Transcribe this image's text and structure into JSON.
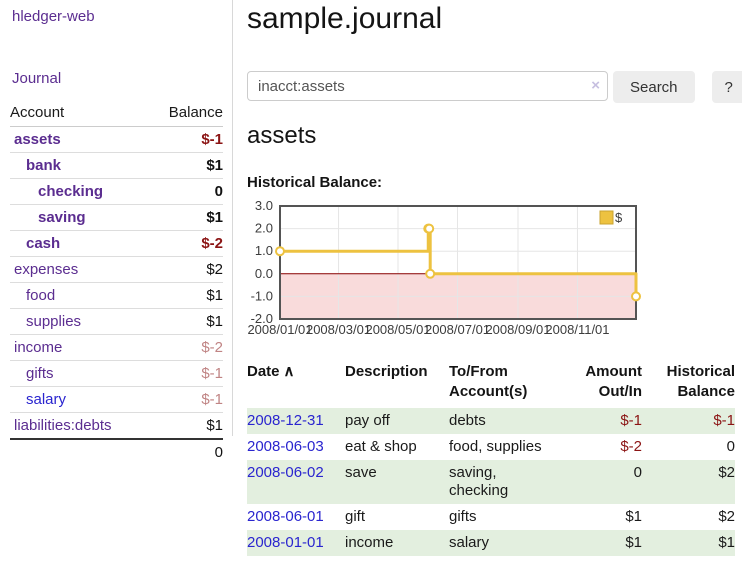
{
  "sidebar": {
    "app_title": "hledger-web",
    "nav": {
      "journal_label": "Journal"
    },
    "accounts_table": {
      "account_header": "Account",
      "balance_header": "Balance",
      "rows": [
        {
          "name": "assets",
          "balance": "$-1",
          "depth": 1,
          "bold": true,
          "blue": false,
          "balance_class": "neg-strong"
        },
        {
          "name": "bank",
          "balance": "$1",
          "depth": 2,
          "bold": true,
          "blue": false,
          "balance_class": "pos"
        },
        {
          "name": "checking",
          "balance": "0",
          "depth": 3,
          "bold": true,
          "blue": false,
          "balance_class": "pos"
        },
        {
          "name": "saving",
          "balance": "$1",
          "depth": 3,
          "bold": true,
          "blue": false,
          "balance_class": "pos"
        },
        {
          "name": "cash",
          "balance": "$-2",
          "depth": 2,
          "bold": true,
          "blue": false,
          "balance_class": "neg-strong"
        },
        {
          "name": "expenses",
          "balance": "$2",
          "depth": 1,
          "bold": false,
          "blue": false,
          "balance_class": "pos"
        },
        {
          "name": "food",
          "balance": "$1",
          "depth": 2,
          "bold": false,
          "blue": false,
          "balance_class": "pos"
        },
        {
          "name": "supplies",
          "balance": "$1",
          "depth": 2,
          "bold": false,
          "blue": false,
          "balance_class": "pos"
        },
        {
          "name": "income",
          "balance": "$-2",
          "depth": 1,
          "bold": false,
          "blue": false,
          "balance_class": "neg-soft"
        },
        {
          "name": "gifts",
          "balance": "$-1",
          "depth": 2,
          "bold": false,
          "blue": false,
          "balance_class": "neg-soft"
        },
        {
          "name": "salary",
          "balance": "$-1",
          "depth": 2,
          "bold": false,
          "blue": true,
          "balance_class": "neg-soft"
        },
        {
          "name": "liabilities:debts",
          "balance": "$1",
          "depth": 1,
          "bold": false,
          "blue": false,
          "balance_class": "pos"
        }
      ],
      "total": "0"
    }
  },
  "main": {
    "title": "sample.journal",
    "search": {
      "value": "inacct:assets",
      "clear_icon": "×",
      "button_label": "Search",
      "help_label": "?"
    },
    "account_heading": "assets",
    "chart_label": "Historical Balance:"
  },
  "chart_data": {
    "type": "line",
    "step": true,
    "title": "Historical Balance:",
    "series": [
      {
        "name": "$",
        "color": "#edc240",
        "points": [
          [
            "2008-01-01",
            1
          ],
          [
            "2008-06-01",
            2
          ],
          [
            "2008-06-02",
            2
          ],
          [
            "2008-06-03",
            0
          ],
          [
            "2008-12-31",
            -1
          ]
        ]
      }
    ],
    "x_ticks": [
      "2008/01/01",
      "2008/03/01",
      "2008/05/01",
      "2008/07/01",
      "2008/09/01",
      "2008/11/01"
    ],
    "y_ticks": [
      3.0,
      2.0,
      1.0,
      0.0,
      -1.0,
      -2.0
    ],
    "xlim": [
      "2008-01-01",
      "2008-12-31"
    ],
    "ylim": [
      -2,
      3
    ],
    "grid": true,
    "legend_position": "top-right",
    "legend": [
      "$"
    ],
    "negative_region_fill": "#f9dbdb",
    "zero_line_color": "#8b0000",
    "border_color": "#545454",
    "grid_color": "#e6e6e6"
  },
  "register_table": {
    "headers": {
      "date": "Date",
      "sort_icon": "∧",
      "description": "Description",
      "accounts": "To/From Account(s)",
      "amount": "Amount Out/In",
      "balance": "Historical Balance"
    },
    "rows": [
      {
        "date": "2008-12-31",
        "description": "pay off",
        "accounts": "debts",
        "amount": "$-1",
        "balance": "$-1",
        "amount_class": "neg",
        "balance_class": "neg"
      },
      {
        "date": "2008-06-03",
        "description": "eat & shop",
        "accounts": "food, supplies",
        "amount": "$-2",
        "balance": "0",
        "amount_class": "neg",
        "balance_class": ""
      },
      {
        "date": "2008-06-02",
        "description": "save",
        "accounts": "saving, checking",
        "amount": "0",
        "balance": "$2",
        "amount_class": "",
        "balance_class": ""
      },
      {
        "date": "2008-06-01",
        "description": "gift",
        "accounts": "gifts",
        "amount": "$1",
        "balance": "$2",
        "amount_class": "",
        "balance_class": ""
      },
      {
        "date": "2008-01-01",
        "description": "income",
        "accounts": "salary",
        "amount": "$1",
        "balance": "$1",
        "amount_class": "",
        "balance_class": ""
      }
    ]
  }
}
